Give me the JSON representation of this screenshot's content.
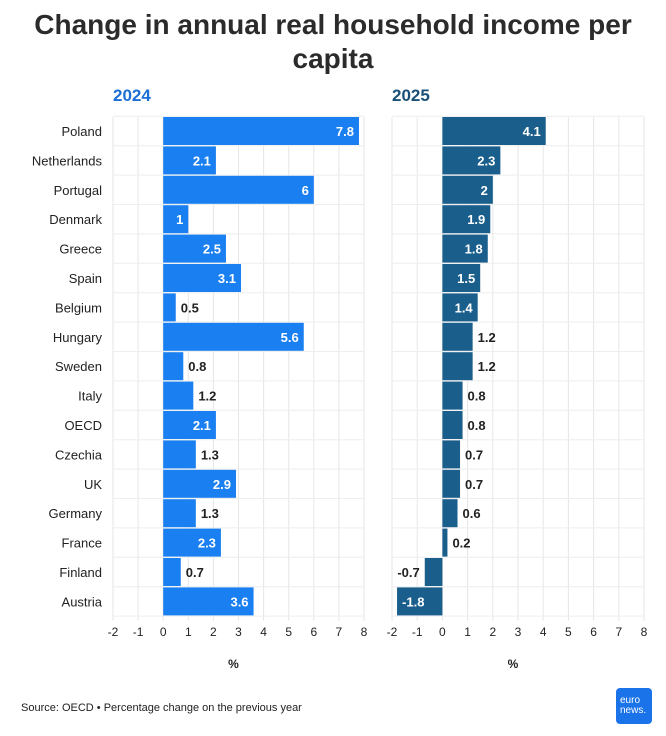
{
  "title": "Change in annual real household income per capita",
  "source": "Source: OECD • Percentage change on the previous year",
  "logo": {
    "line1": "euro",
    "line2": "news."
  },
  "colors": {
    "p2024": "#1a7ff0",
    "p2025": "#1a5e8c",
    "title2024": "#1a6fd6",
    "title2025": "#1a5078"
  },
  "chart_data": {
    "type": "bar",
    "orientation": "horizontal",
    "categories": [
      "Poland",
      "Netherlands",
      "Portugal",
      "Denmark",
      "Greece",
      "Spain",
      "Belgium",
      "Hungary",
      "Sweden",
      "Italy",
      "OECD",
      "Czechia",
      "UK",
      "Germany",
      "France",
      "Finland",
      "Austria"
    ],
    "panels": [
      {
        "title": "2024",
        "xlabel": "%",
        "xlim": [
          -2,
          8
        ],
        "values": [
          7.8,
          2.1,
          6,
          1,
          2.5,
          3.1,
          0.5,
          5.6,
          0.8,
          1.2,
          2.1,
          1.3,
          2.9,
          1.3,
          2.3,
          0.7,
          3.6
        ]
      },
      {
        "title": "2025",
        "xlabel": "%",
        "xlim": [
          -2,
          8
        ],
        "values": [
          4.1,
          2.3,
          2,
          1.9,
          1.8,
          1.5,
          1.4,
          1.2,
          1.2,
          0.8,
          0.8,
          0.7,
          0.7,
          0.6,
          0.2,
          -0.7,
          -1.8
        ]
      }
    ],
    "ticks": [
      -2,
      -1,
      0,
      1,
      2,
      3,
      4,
      5,
      6,
      7,
      8
    ],
    "grid": true
  }
}
